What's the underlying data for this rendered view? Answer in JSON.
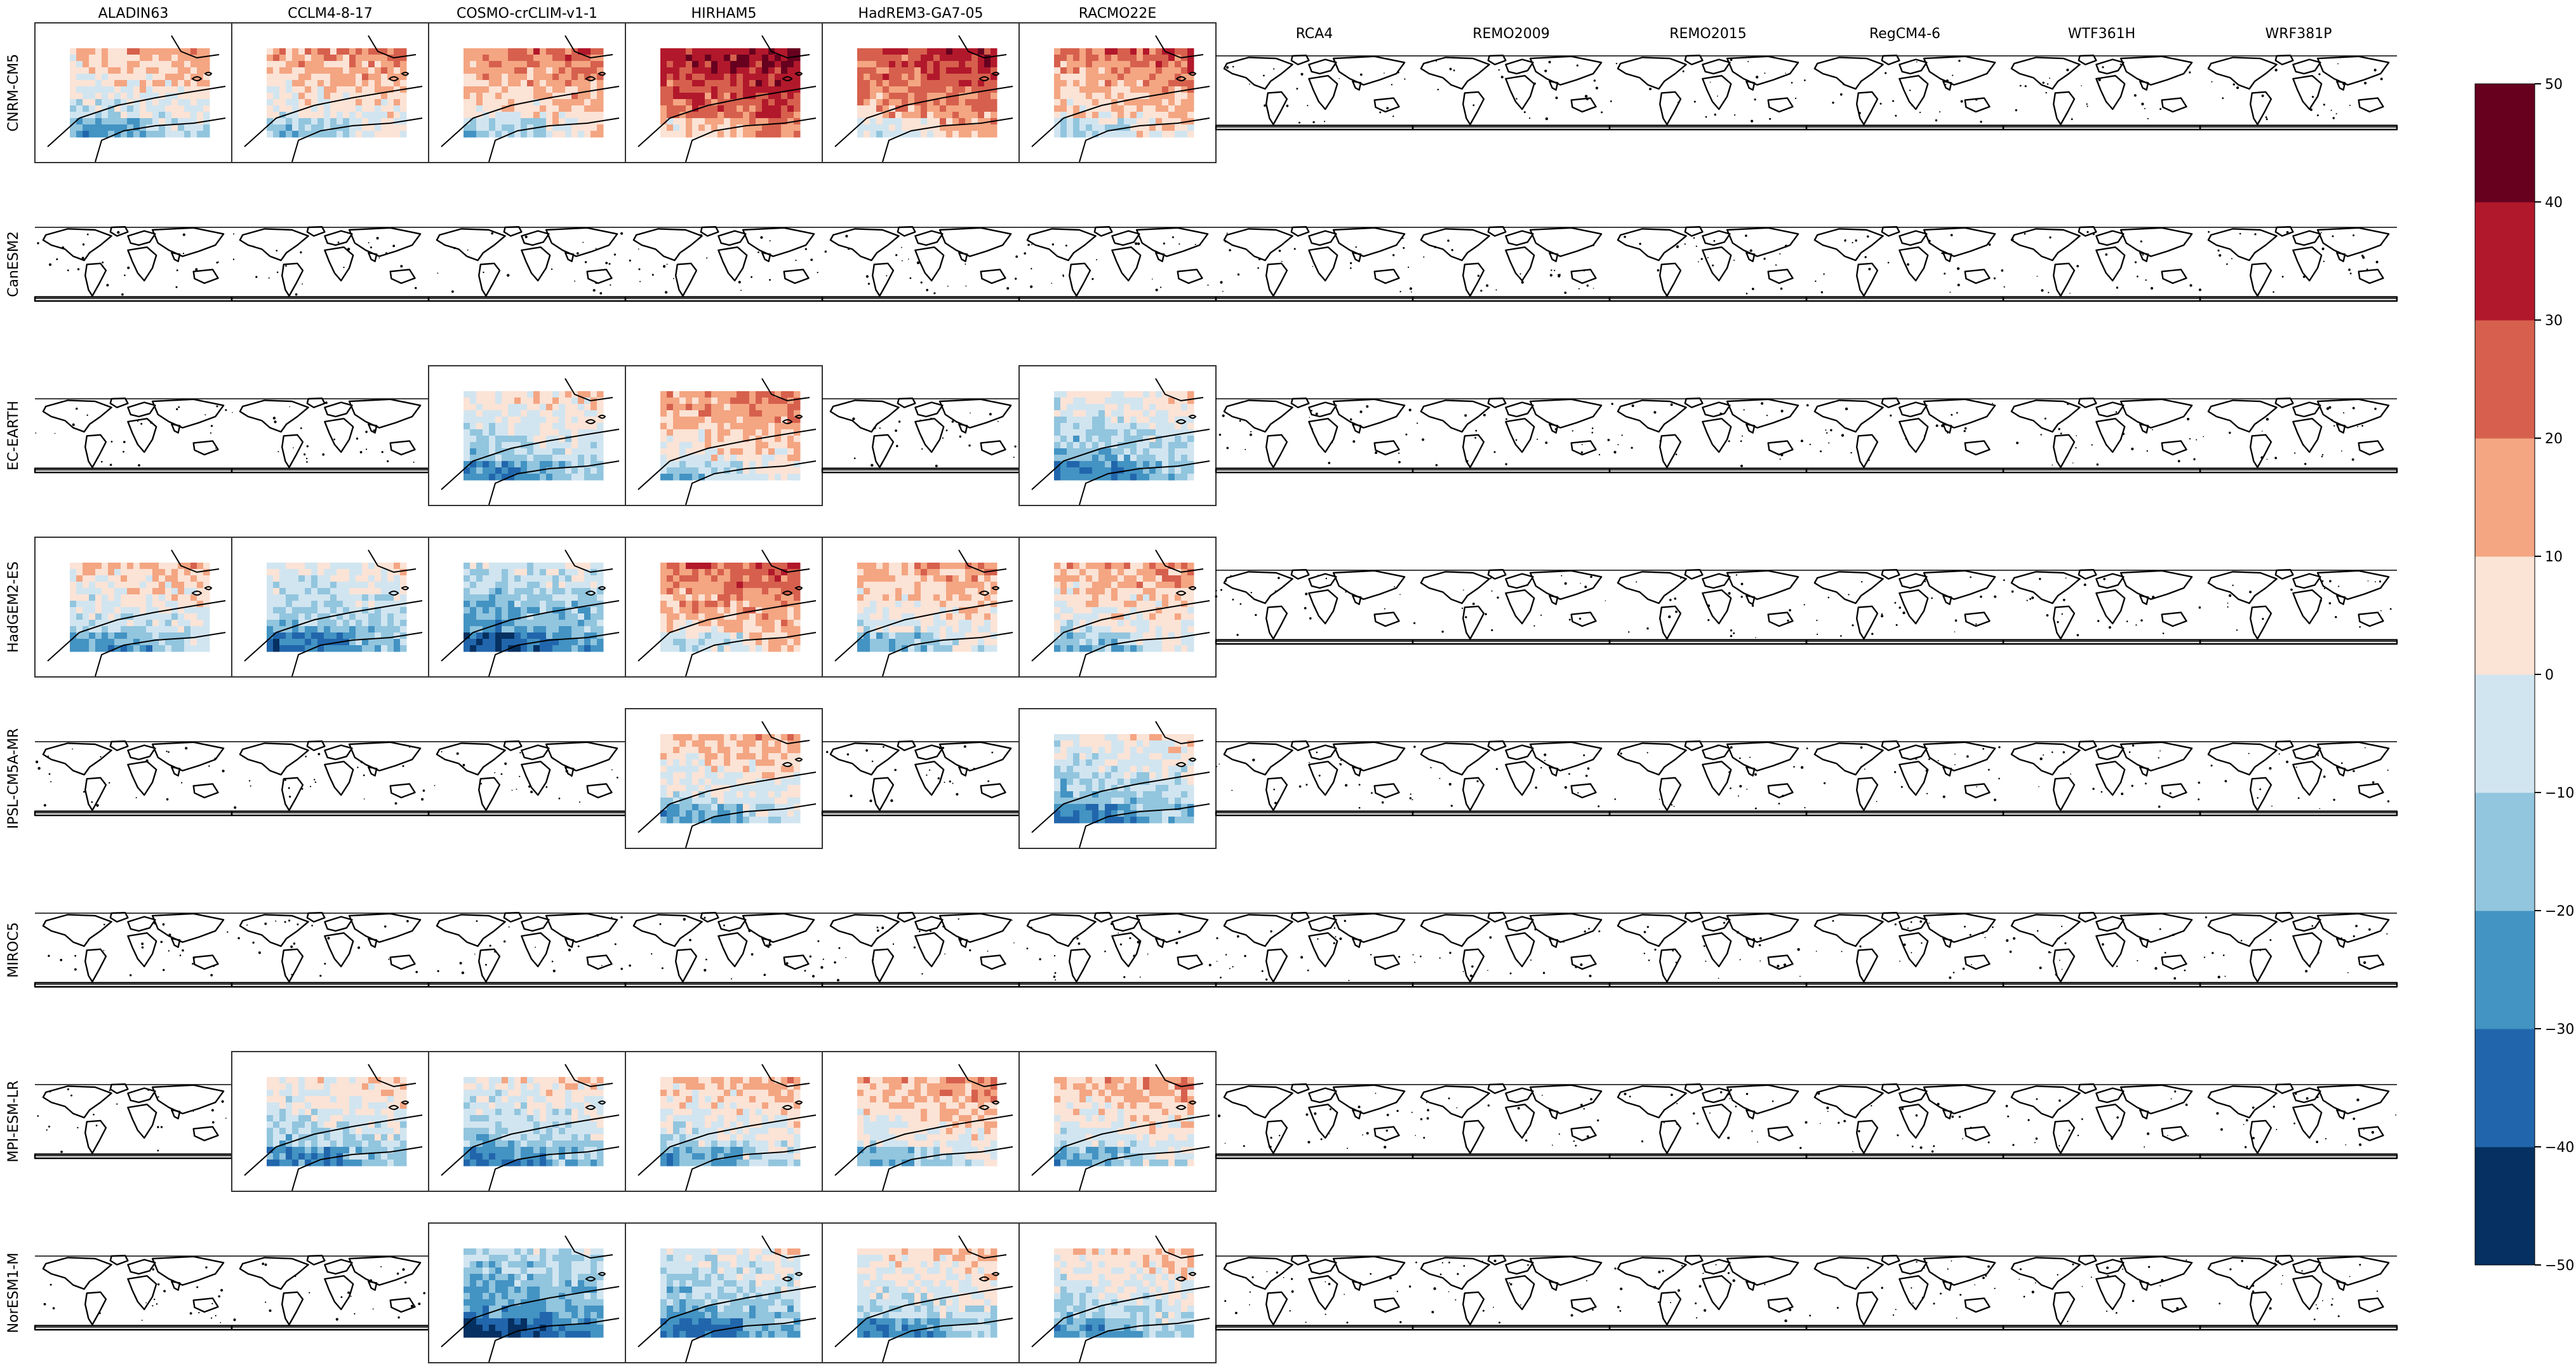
{
  "figure": {
    "columns": [
      "ALADIN63",
      "CCLM4-8-17",
      "COSMO-crCLIM-v1-1",
      "HIRHAM5",
      "HadREM3-GA7-05",
      "RACMO22E",
      "RCA4",
      "REMO2009",
      "REMO2015",
      "RegCM4-6",
      "WTF361H",
      "WRF381P"
    ],
    "rows": [
      "CNRM-CM5",
      "CanESM2",
      "EC-EARTH",
      "HadGEM2-ES",
      "IPSL-CM5A-MR",
      "MIROC5",
      "MPI-ESM-LR",
      "NorESM1-M"
    ]
  },
  "chart_data": {
    "type": "heatmap",
    "title": "",
    "description_of_layout": "",
    "grid_type": "small multiples: rows = driving GCMs, columns = regional climate models",
    "colorbar": {
      "min": -50,
      "max": 50,
      "levels": [
        -50,
        -40,
        -30,
        -20,
        -10,
        0,
        10,
        20,
        30,
        40,
        50
      ],
      "tick_labels": [
        "−50",
        "−40",
        "−30",
        "−20",
        "−10",
        "0",
        "10",
        "20",
        "30",
        "40",
        "50"
      ],
      "colors": [
        "#053061",
        "#2166ac",
        "#4393c3",
        "#92c5de",
        "#d1e5f0",
        "#fbe3d6",
        "#f4a582",
        "#d6604d",
        "#b2182b",
        "#67001f"
      ],
      "orientation": "vertical",
      "placement": "right"
    },
    "available_panels": [
      {
        "row": "CNRM-CM5",
        "col": "ALADIN63",
        "tone": 0.5
      },
      {
        "row": "CNRM-CM5",
        "col": "CCLM4-8-17",
        "tone": 6
      },
      {
        "row": "CNRM-CM5",
        "col": "COSMO-crCLIM-v1-1",
        "tone": 10
      },
      {
        "row": "CNRM-CM5",
        "col": "HIRHAM5",
        "tone": 28
      },
      {
        "row": "CNRM-CM5",
        "col": "HadREM3-GA7-05",
        "tone": 20
      },
      {
        "row": "CNRM-CM5",
        "col": "RACMO22E",
        "tone": 12
      },
      {
        "row": "EC-EARTH",
        "col": "COSMO-crCLIM-v1-1",
        "tone": -6
      },
      {
        "row": "EC-EARTH",
        "col": "HIRHAM5",
        "tone": 8
      },
      {
        "row": "EC-EARTH",
        "col": "RACMO22E",
        "tone": -10
      },
      {
        "row": "HadGEM2-ES",
        "col": "ALADIN63",
        "tone": -2
      },
      {
        "row": "HadGEM2-ES",
        "col": "CCLM4-8-17",
        "tone": -10
      },
      {
        "row": "HadGEM2-ES",
        "col": "COSMO-crCLIM-v1-1",
        "tone": -16
      },
      {
        "row": "HadGEM2-ES",
        "col": "HIRHAM5",
        "tone": 14
      },
      {
        "row": "HadGEM2-ES",
        "col": "HadREM3-GA7-05",
        "tone": 4
      },
      {
        "row": "HadGEM2-ES",
        "col": "RACMO22E",
        "tone": 4
      },
      {
        "row": "IPSL-CM5A-MR",
        "col": "HIRHAM5",
        "tone": 0
      },
      {
        "row": "IPSL-CM5A-MR",
        "col": "RACMO22E",
        "tone": -8
      },
      {
        "row": "MPI-ESM-LR",
        "col": "CCLM4-8-17",
        "tone": -6
      },
      {
        "row": "MPI-ESM-LR",
        "col": "COSMO-crCLIM-v1-1",
        "tone": -8
      },
      {
        "row": "MPI-ESM-LR",
        "col": "HIRHAM5",
        "tone": 0
      },
      {
        "row": "MPI-ESM-LR",
        "col": "HadREM3-GA7-05",
        "tone": 4
      },
      {
        "row": "MPI-ESM-LR",
        "col": "RACMO22E",
        "tone": 2
      },
      {
        "row": "NorESM1-M",
        "col": "COSMO-crCLIM-v1-1",
        "tone": -20
      },
      {
        "row": "NorESM1-M",
        "col": "HIRHAM5",
        "tone": -12
      },
      {
        "row": "NorESM1-M",
        "col": "HadREM3-GA7-05",
        "tone": -4
      },
      {
        "row": "NorESM1-M",
        "col": "RACMO22E",
        "tone": -4
      }
    ]
  }
}
